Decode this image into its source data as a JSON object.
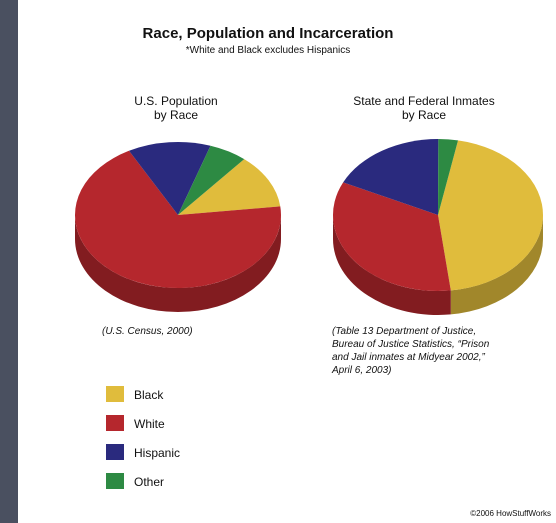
{
  "chart_data": {
    "type": "pie",
    "title": "Race, Population and Incarceration",
    "subtitle": "*White and Black excludes Hispanics",
    "categories": [
      "Black",
      "White",
      "Hispanic",
      "Other"
    ],
    "colors": {
      "Black": "#e0bc3c",
      "White": "#b5272d",
      "Hispanic": "#2a2a7e",
      "Other": "#2d8a43"
    },
    "pies": [
      {
        "title_lines": [
          "U.S. Population",
          "by Race"
        ],
        "values": [
          12,
          69,
          13,
          6
        ],
        "source_lines": [
          "(U.S. Census, 2000)"
        ]
      },
      {
        "title_lines": [
          "State and Federal Inmates",
          "by Race"
        ],
        "values": [
          45,
          34,
          18,
          3
        ],
        "source_lines": [
          "(Table 13 Department of Justice,",
          "Bureau of Justice Statistics, “Prison",
          "and Jail inmates at Midyear 2002,”",
          "April 6, 2003)"
        ]
      }
    ],
    "legend": [
      "Black",
      "White",
      "Hispanic",
      "Other"
    ],
    "credit": "©2006 HowStuffWorks"
  }
}
